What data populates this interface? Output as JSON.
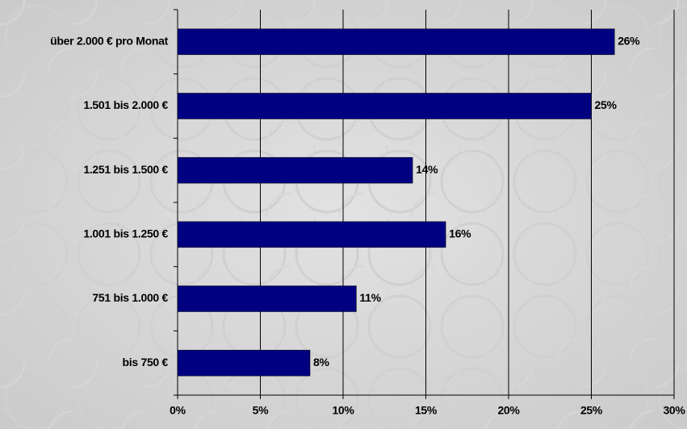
{
  "chart_data": {
    "type": "bar",
    "orientation": "horizontal",
    "categories": [
      "über 2.000 € pro Monat",
      "1.501 bis 2.000 €",
      "1.251 bis 1.500 €",
      "1.001 bis 1.250 €",
      "751 bis 1.000 €",
      "bis 750 €"
    ],
    "values": [
      26.4,
      25,
      14.2,
      16.2,
      10.8,
      8
    ],
    "value_labels": [
      "26%",
      "25%",
      "14%",
      "16%",
      "11%",
      "8%"
    ],
    "color": "#000080",
    "xlim": [
      0,
      30
    ],
    "xticks": [
      {
        "value": 0,
        "label": "0%"
      },
      {
        "value": 5,
        "label": "5%"
      },
      {
        "value": 10,
        "label": "10%"
      },
      {
        "value": 15,
        "label": "15%"
      },
      {
        "value": 20,
        "label": "20%"
      },
      {
        "value": 25,
        "label": "25%"
      },
      {
        "value": 30,
        "label": "30%"
      }
    ],
    "grid": true
  }
}
